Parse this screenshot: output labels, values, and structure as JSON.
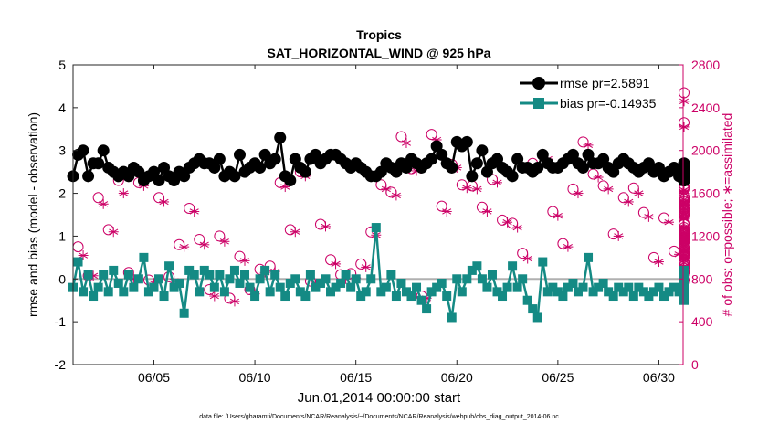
{
  "chart_data": {
    "type": "line",
    "title": "Tropics",
    "subtitle": "SAT_HORIZONTAL_WIND @ 925 hPa",
    "xlabel": "Jun.01,2014 00:00:00 start",
    "ylabel_left": "rmse and bias (model - observation)",
    "ylabel_right": "# of obs: o=possible; ∗=assimilated",
    "footnote": "data file: /Users/gharamti/Documents/NCAR/Reanalysis/~/Documents/NCAR/Reanalysis/webpub/obs_diag_output_2014-06.nc",
    "xlim": [
      1.0,
      31.2
    ],
    "ylim_left": [
      -2,
      5
    ],
    "ylim_right": [
      0,
      2800
    ],
    "x_ticks": [
      5,
      10,
      15,
      20,
      25,
      30
    ],
    "x_tick_labels": [
      "06/05",
      "06/10",
      "06/15",
      "06/20",
      "06/25",
      "06/30"
    ],
    "y_left_ticks": [
      -2,
      -1,
      0,
      1,
      2,
      3,
      4,
      5
    ],
    "y_right_ticks": [
      0,
      400,
      800,
      1200,
      1600,
      2000,
      2400,
      2800
    ],
    "zero_line": 0,
    "legend": {
      "position": "top-right",
      "entries": [
        {
          "label": "rmse pr=2.5891",
          "series": "rmse"
        },
        {
          "label": "bias pr=-0.14935",
          "series": "bias"
        }
      ]
    },
    "series": [
      {
        "name": "rmse",
        "color": "#000000",
        "marker": "circle",
        "axis": "left",
        "x_start": 1.0,
        "dx": 0.25,
        "values": [
          2.4,
          2.9,
          3.0,
          2.4,
          2.7,
          2.7,
          3.0,
          2.6,
          2.5,
          2.4,
          2.5,
          2.4,
          2.6,
          2.5,
          2.3,
          2.4,
          2.5,
          2.3,
          2.6,
          2.4,
          2.3,
          2.5,
          2.4,
          2.6,
          2.7,
          2.8,
          2.7,
          2.7,
          2.6,
          2.8,
          2.4,
          2.5,
          2.4,
          2.9,
          2.5,
          2.6,
          2.7,
          2.6,
          2.9,
          2.7,
          2.8,
          3.3,
          2.4,
          2.3,
          2.8,
          2.6,
          2.5,
          2.8,
          2.9,
          2.7,
          2.8,
          2.9,
          2.9,
          2.8,
          2.7,
          2.6,
          2.7,
          2.6,
          2.5,
          2.4,
          2.4,
          2.5,
          2.7,
          2.6,
          2.5,
          2.7,
          2.6,
          2.8,
          2.7,
          2.6,
          2.7,
          2.8,
          3.1,
          2.9,
          2.7,
          2.6,
          3.2,
          3.1,
          3.2,
          2.4,
          2.7,
          3.0,
          2.5,
          2.7,
          2.8,
          2.6,
          2.5,
          2.4,
          2.8,
          2.6,
          2.6,
          2.5,
          2.6,
          2.9,
          2.7,
          2.6,
          2.6,
          2.7,
          2.8,
          2.9,
          2.7,
          2.6,
          2.9,
          2.7,
          2.7,
          2.8,
          2.6,
          2.5,
          2.7,
          2.8,
          2.7,
          2.6,
          2.5,
          2.6,
          2.7,
          2.5,
          2.6,
          2.4,
          2.5,
          2.6,
          2.4,
          2.5,
          2.4,
          2.6,
          2.5,
          2.3,
          2.4,
          2.6,
          2.3,
          2.5,
          2.6,
          2.4,
          2.5,
          2.6,
          2.3,
          2.5,
          2.4,
          2.6,
          2.3,
          2.5,
          2.4,
          2.5,
          2.3,
          2.6,
          2.4,
          2.7,
          2.4,
          2.4
        ]
      },
      {
        "name": "bias",
        "color": "#148a84",
        "marker": "square",
        "axis": "left",
        "x_start": 1.0,
        "dx": 0.25,
        "values": [
          -0.2,
          0.4,
          -0.3,
          0.1,
          -0.4,
          -0.2,
          0.1,
          -0.3,
          0.2,
          -0.1,
          -0.3,
          0.1,
          -0.2,
          0.0,
          0.5,
          -0.3,
          -0.2,
          0.0,
          -0.4,
          0.3,
          -0.2,
          -0.1,
          -0.8,
          0.2,
          0.1,
          -0.3,
          0.2,
          0.1,
          -0.2,
          0.1,
          -0.3,
          0.0,
          0.2,
          -0.1,
          0.1,
          -0.2,
          -0.4,
          0.0,
          0.2,
          -0.3,
          0.1,
          -0.2,
          -0.4,
          -0.1,
          0.0,
          -0.3,
          -0.4,
          0.1,
          -0.2,
          -0.1,
          0.0,
          -0.3,
          -0.2,
          -0.1,
          0.1,
          -0.2,
          0.0,
          -0.4,
          -0.3,
          0.0,
          1.2,
          -0.3,
          -0.2,
          0.1,
          -0.4,
          -0.1,
          -0.3,
          -0.4,
          -0.2,
          -0.5,
          -0.7,
          -0.3,
          -0.2,
          -0.1,
          -0.4,
          -0.9,
          0.0,
          -0.3,
          0.0,
          0.2,
          0.3,
          0.0,
          -0.2,
          0.1,
          -0.3,
          -0.4,
          -0.2,
          0.3,
          -0.2,
          0.0,
          -0.5,
          -0.7,
          -0.9,
          0.4,
          -0.3,
          -0.2,
          -0.3,
          -0.4,
          -0.2,
          -0.1,
          -0.3,
          -0.2,
          0.5,
          -0.3,
          -0.2,
          -0.1,
          -0.3,
          -0.4,
          -0.2,
          -0.3,
          -0.2,
          -0.4,
          -0.2,
          -0.3,
          -0.4,
          -0.3,
          -0.2,
          -0.4,
          -0.3,
          -0.2,
          -0.3,
          -0.1,
          -0.2,
          -0.3,
          -0.4,
          -0.2,
          -0.3,
          -0.4,
          -0.2,
          -0.1,
          -0.3,
          -0.2,
          -0.3,
          -0.4,
          -0.2,
          -0.1,
          -0.3,
          0.1,
          -0.2,
          -0.3,
          -0.4,
          -0.3,
          0.2,
          -0.2,
          -0.3,
          -0.4,
          -0.3,
          -0.4,
          -0.3,
          -0.5
        ]
      },
      {
        "name": "obs possible",
        "color": "#cc0066",
        "marker": "open-circle",
        "axis": "right",
        "x_start": 1.25,
        "dx": 0.5,
        "values": [
          1100,
          830,
          1560,
          1260,
          1720,
          860,
          1700,
          790,
          1560,
          820,
          1120,
          1460,
          1170,
          700,
          1200,
          620,
          1010,
          700,
          890,
          920,
          1700,
          1260,
          1800,
          780,
          1310,
          980,
          840,
          850,
          940,
          1240,
          1680,
          1610,
          2130,
          1830,
          640,
          2150,
          1480,
          1870,
          1680,
          1670,
          1470,
          1730,
          1350,
          1320,
          1040,
          1880,
          1960,
          1430,
          1130,
          1640,
          2080,
          1780,
          1670,
          1220,
          1560,
          1650,
          1420,
          1000,
          1370,
          1060,
          1870,
          1550,
          1190,
          950,
          1250,
          1280,
          1090,
          1260,
          1220,
          1070,
          1750,
          1140,
          1720,
          1660,
          1720,
          1530,
          1450,
          1170,
          1790,
          1310,
          1410,
          1570,
          1460,
          1190,
          1520,
          1220,
          940,
          960,
          860,
          1240,
          1640,
          1430,
          1180,
          1230,
          1660,
          2260,
          1030,
          1490,
          860,
          2540,
          1400,
          1040,
          1400,
          1320,
          1160,
          1030,
          1550,
          1180,
          1100,
          790,
          1750,
          900,
          1210,
          1020,
          1140,
          870,
          1050,
          1090,
          1000,
          920
        ]
      },
      {
        "name": "obs assimilated",
        "color": "#cc0066",
        "marker": "asterisk",
        "axis": "right",
        "x_start": 1.5,
        "dx": 0.5,
        "values": [
          1020,
          830,
          1500,
          1240,
          1600,
          800,
          1670,
          760,
          1520,
          780,
          1100,
          1430,
          1120,
          640,
          1150,
          590,
          970,
          660,
          860,
          870,
          1660,
          1240,
          1760,
          750,
          1290,
          940,
          800,
          810,
          910,
          1210,
          1640,
          1580,
          2070,
          1810,
          620,
          2100,
          1430,
          1840,
          1650,
          1640,
          1430,
          1700,
          1330,
          1280,
          990,
          1840,
          1920,
          1390,
          1100,
          1600,
          2050,
          1750,
          1640,
          1200,
          1520,
          1600,
          1380,
          960,
          1330,
          1030,
          1840,
          1520,
          1160,
          920,
          1220,
          1240,
          1060,
          1230,
          1190,
          1030,
          1710,
          1110,
          1700,
          1630,
          1690,
          1500,
          1420,
          1140,
          1760,
          1280,
          1380,
          1540,
          1430,
          1160,
          1490,
          1200,
          910,
          920,
          830,
          1200,
          1600,
          1400,
          1150,
          1200,
          1630,
          2220,
          990,
          1460,
          830,
          2460,
          1370,
          1000,
          1360,
          1280,
          1130,
          990,
          1510,
          1140,
          1070,
          760,
          1720,
          870,
          1180,
          990,
          1110,
          840,
          1020,
          1060,
          970,
          890
        ]
      }
    ]
  }
}
